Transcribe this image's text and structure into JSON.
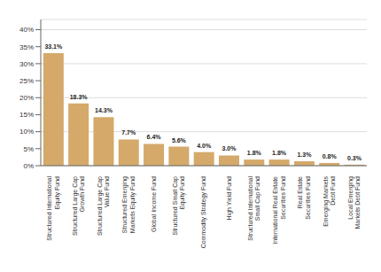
{
  "chart_data": {
    "type": "bar",
    "categories": [
      "Structured International\nEquity Fund",
      "Structured Large Cap\nGrowth Fund",
      "Structured Large Cap\nValue Fund",
      "Structured Emerging\nMarkets Equity Fund",
      "Global Income Fund",
      "Structured Small Cap\nEquity Fund",
      "Commodity Strategy Fund",
      "High Yield Fund",
      "Structured International\nSmall Cap Fund",
      "International Real Estate\nSecurities Fund",
      "Real Estate\nSecurities Fund",
      "Emerging Markets\nDebt Fund",
      "Local Emerging\nMarkets Debt Fund"
    ],
    "values": [
      33.1,
      18.3,
      14.3,
      7.7,
      6.4,
      5.6,
      4.0,
      3.0,
      1.8,
      1.8,
      1.3,
      0.8,
      0.3
    ],
    "value_labels": [
      "33.1%",
      "18.3%",
      "14.3%",
      "7.7%",
      "6.4%",
      "5.6%",
      "4.0%",
      "3.0%",
      "1.8%",
      "1.8%",
      "1.3%",
      "0.8%",
      "0.3%"
    ],
    "data_labels": true,
    "color": "#D4A96A",
    "ylim": [
      0,
      43
    ],
    "yticks": [
      {
        "value": 0,
        "label": "0%"
      },
      {
        "value": 5,
        "label": "5%"
      },
      {
        "value": 10,
        "label": "10%"
      },
      {
        "value": 15,
        "label": "15%"
      },
      {
        "value": 20,
        "label": "20%"
      },
      {
        "value": 25,
        "label": "25%"
      },
      {
        "value": 30,
        "label": "30%"
      },
      {
        "value": 35,
        "label": "35%"
      },
      {
        "value": 40,
        "label": "40%"
      }
    ],
    "grid": true
  }
}
